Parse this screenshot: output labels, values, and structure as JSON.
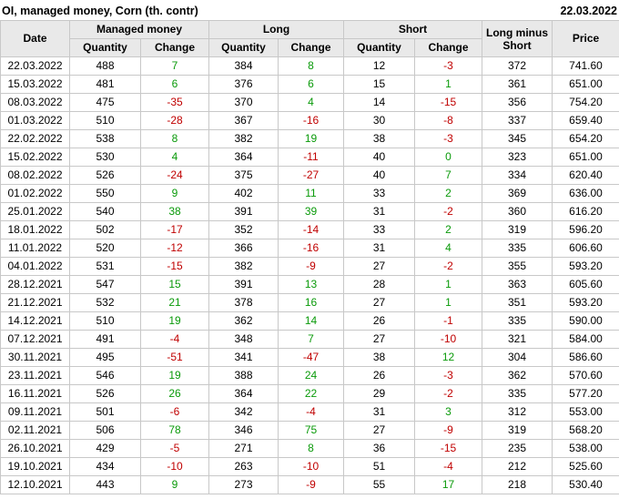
{
  "page": {
    "title": "OI, managed money, Corn (th. contr)",
    "report_date": "22.03.2022"
  },
  "colors": {
    "positive_change": "#0a9a0a",
    "negative_change": "#c00000",
    "header_background": "#e9e9e9",
    "grid_line": "#c8c8c8",
    "text": "#000000"
  },
  "chart_data": {
    "type": "table",
    "title": "OI, managed money, Corn (th. contr)",
    "as_of_date": "22.03.2022",
    "header": {
      "date": "Date",
      "groups": [
        {
          "label": "Managed money",
          "sub": [
            "Quantity",
            "Change"
          ]
        },
        {
          "label": "Long",
          "sub": [
            "Quantity",
            "Change"
          ]
        },
        {
          "label": "Short",
          "sub": [
            "Quantity",
            "Change"
          ]
        }
      ],
      "long_minus_short": "Long minus Short",
      "price": "Price"
    },
    "columns": [
      "Date",
      "Managed money Quantity",
      "Managed money Change",
      "Long Quantity",
      "Long Change",
      "Short Quantity",
      "Short Change",
      "Long minus Short",
      "Price"
    ],
    "change_columns": [
      2,
      4,
      6
    ],
    "rows": [
      [
        "22.03.2022",
        488,
        7,
        384,
        8,
        12,
        -3,
        372,
        "741.60"
      ],
      [
        "15.03.2022",
        481,
        6,
        376,
        6,
        15,
        1,
        361,
        "651.00"
      ],
      [
        "08.03.2022",
        475,
        -35,
        370,
        4,
        14,
        -15,
        356,
        "754.20"
      ],
      [
        "01.03.2022",
        510,
        -28,
        367,
        -16,
        30,
        -8,
        337,
        "659.40"
      ],
      [
        "22.02.2022",
        538,
        8,
        382,
        19,
        38,
        -3,
        345,
        "654.20"
      ],
      [
        "15.02.2022",
        530,
        4,
        364,
        -11,
        40,
        0,
        323,
        "651.00"
      ],
      [
        "08.02.2022",
        526,
        -24,
        375,
        -27,
        40,
        7,
        334,
        "620.40"
      ],
      [
        "01.02.2022",
        550,
        9,
        402,
        11,
        33,
        2,
        369,
        "636.00"
      ],
      [
        "25.01.2022",
        540,
        38,
        391,
        39,
        31,
        -2,
        360,
        "616.20"
      ],
      [
        "18.01.2022",
        502,
        -17,
        352,
        -14,
        33,
        2,
        319,
        "596.20"
      ],
      [
        "11.01.2022",
        520,
        -12,
        366,
        -16,
        31,
        4,
        335,
        "606.60"
      ],
      [
        "04.01.2022",
        531,
        -15,
        382,
        -9,
        27,
        -2,
        355,
        "593.20"
      ],
      [
        "28.12.2021",
        547,
        15,
        391,
        13,
        28,
        1,
        363,
        "605.60"
      ],
      [
        "21.12.2021",
        532,
        21,
        378,
        16,
        27,
        1,
        351,
        "593.20"
      ],
      [
        "14.12.2021",
        510,
        19,
        362,
        14,
        26,
        -1,
        335,
        "590.00"
      ],
      [
        "07.12.2021",
        491,
        -4,
        348,
        7,
        27,
        -10,
        321,
        "584.00"
      ],
      [
        "30.11.2021",
        495,
        -51,
        341,
        -47,
        38,
        12,
        304,
        "586.60"
      ],
      [
        "23.11.2021",
        546,
        19,
        388,
        24,
        26,
        -3,
        362,
        "570.60"
      ],
      [
        "16.11.2021",
        526,
        26,
        364,
        22,
        29,
        -2,
        335,
        "577.20"
      ],
      [
        "09.11.2021",
        501,
        -6,
        342,
        -4,
        31,
        3,
        312,
        "553.00"
      ],
      [
        "02.11.2021",
        506,
        78,
        346,
        75,
        27,
        -9,
        319,
        "568.20"
      ],
      [
        "26.10.2021",
        429,
        -5,
        271,
        8,
        36,
        -15,
        235,
        "538.00"
      ],
      [
        "19.10.2021",
        434,
        -10,
        263,
        -10,
        51,
        -4,
        212,
        "525.60"
      ],
      [
        "12.10.2021",
        443,
        9,
        273,
        -9,
        55,
        17,
        218,
        "530.40"
      ]
    ]
  }
}
